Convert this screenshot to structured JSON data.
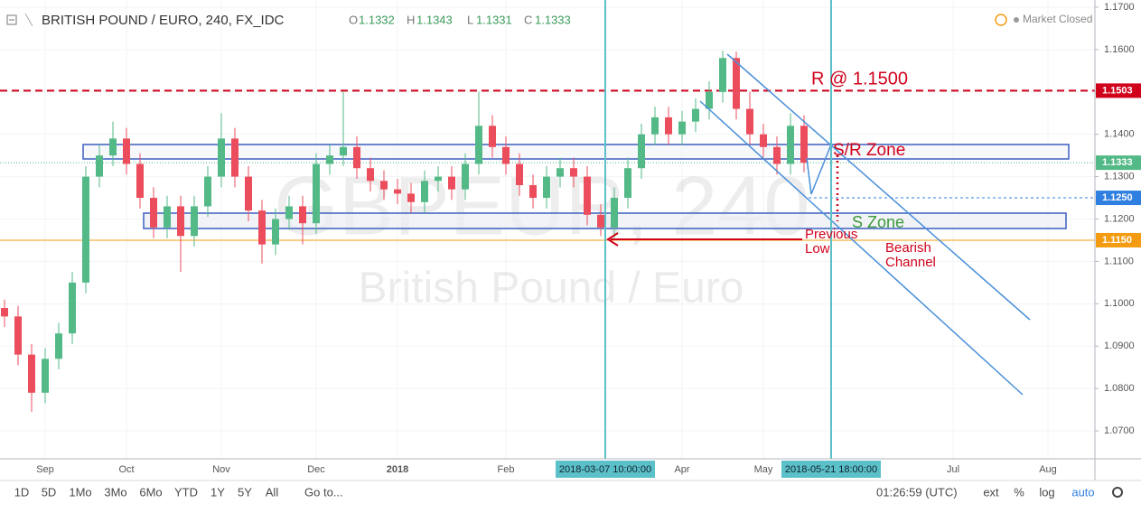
{
  "header": {
    "title": "BRITISH POUND / EURO, 240, FX_IDC",
    "o_label": "O",
    "o": "1.1332",
    "h_label": "H",
    "h": "1.1343",
    "l_label": "L",
    "l": "1.1331",
    "c_label": "C",
    "c": "1.1333",
    "status": "Market Closed"
  },
  "toolbar": {
    "ranges": [
      "1D",
      "5D",
      "1Mo",
      "3Mo",
      "6Mo",
      "YTD",
      "1Y",
      "5Y",
      "All"
    ],
    "goto": "Go to...",
    "clock": "01:26:59 (UTC)",
    "options": [
      "ext",
      "%",
      "log",
      "auto"
    ]
  },
  "chart_data": {
    "type": "candlestick",
    "watermark": "GBPEUR, 240",
    "watermark_sub": "British Pound / Euro",
    "up_color": "#53b987",
    "down_color": "#eb4d5c",
    "categories": [
      null,
      null,
      null,
      "Sep",
      null,
      null,
      null,
      null,
      null,
      "Oct",
      null,
      null,
      null,
      null,
      null,
      null,
      "Nov",
      null,
      null,
      null,
      null,
      null,
      null,
      "Dec",
      null,
      null,
      null,
      null,
      null,
      "2018",
      null,
      null,
      null,
      null,
      null,
      null,
      null,
      "Feb",
      null,
      null,
      null,
      null,
      null,
      null,
      null,
      null,
      null,
      null,
      null,
      null,
      "Apr",
      null,
      null,
      null,
      null,
      null,
      "May",
      null,
      null,
      null,
      null,
      null,
      null,
      null,
      null,
      null,
      null,
      null,
      null,
      null,
      "Jul",
      null,
      null,
      null,
      null,
      null,
      null,
      "Aug"
    ],
    "open": [
      1.099,
      1.097,
      1.088,
      1.079,
      1.087,
      1.093,
      1.105,
      1.13,
      1.135,
      1.139,
      1.133,
      1.125,
      1.118,
      1.123,
      1.116,
      1.123,
      1.13,
      1.139,
      1.13,
      1.122,
      1.114,
      1.12,
      1.123,
      1.119,
      1.133,
      1.135,
      1.137,
      1.132,
      1.129,
      1.127,
      1.126,
      1.124,
      1.129,
      1.13,
      1.127,
      1.133,
      1.142,
      1.137,
      1.133,
      1.128,
      1.125,
      1.13,
      1.132,
      1.13,
      1.121,
      1.118,
      1.125,
      1.132,
      1.14,
      1.144,
      1.14,
      1.143,
      1.146,
      1.15,
      1.158,
      1.146,
      1.14,
      1.137,
      1.133,
      1.142,
      null,
      null,
      null,
      null,
      null,
      null,
      null,
      null,
      null,
      null,
      null,
      null,
      null,
      null,
      null,
      null,
      null,
      null
    ],
    "high": [
      1.101,
      1.0995,
      1.0905,
      1.0895,
      1.0955,
      1.1075,
      1.1325,
      1.1375,
      1.143,
      1.1415,
      1.1355,
      1.1275,
      1.1255,
      1.1255,
      1.1255,
      1.1325,
      1.145,
      1.1415,
      1.1325,
      1.1245,
      1.1225,
      1.1255,
      1.1255,
      1.1355,
      1.1375,
      1.15,
      1.1395,
      1.1345,
      1.1315,
      1.1295,
      1.1285,
      1.1315,
      1.1325,
      1.1325,
      1.1355,
      1.15,
      1.1445,
      1.1395,
      1.1355,
      1.1305,
      1.1325,
      1.1345,
      1.1345,
      1.1325,
      1.1235,
      1.1275,
      1.1345,
      1.1425,
      1.1465,
      1.1465,
      1.1455,
      1.1485,
      1.1525,
      1.1597,
      1.1595,
      1.15,
      1.1425,
      1.1395,
      1.145,
      1.1445,
      null,
      null,
      null,
      null,
      null,
      null,
      null,
      null,
      null,
      null,
      null,
      null,
      null,
      null,
      null,
      null,
      null,
      null
    ],
    "low": [
      1.0945,
      1.0855,
      1.0745,
      1.0765,
      1.0845,
      1.0905,
      1.1025,
      1.1275,
      1.1325,
      1.1305,
      1.1225,
      1.1155,
      1.1155,
      1.1075,
      1.1135,
      1.1205,
      1.1275,
      1.1275,
      1.1195,
      1.1095,
      1.1115,
      1.1175,
      1.114,
      1.1165,
      1.1305,
      1.1325,
      1.1295,
      1.1265,
      1.1245,
      1.1235,
      1.1215,
      1.1215,
      1.1265,
      1.1245,
      1.1245,
      1.1305,
      1.1345,
      1.1305,
      1.1255,
      1.1225,
      1.1225,
      1.1275,
      1.1275,
      1.1185,
      1.116,
      1.1155,
      1.1225,
      1.1295,
      1.1375,
      1.1375,
      1.1375,
      1.1405,
      1.1435,
      1.1475,
      1.1435,
      1.1375,
      1.1345,
      1.1305,
      1.1305,
      1.131,
      null,
      null,
      null,
      null,
      null,
      null,
      null,
      null,
      null,
      null,
      null,
      null,
      null,
      null,
      null,
      null,
      null,
      null
    ],
    "close": [
      1.097,
      1.088,
      1.079,
      1.087,
      1.093,
      1.105,
      1.13,
      1.135,
      1.139,
      1.133,
      1.125,
      1.118,
      1.123,
      1.116,
      1.123,
      1.13,
      1.139,
      1.13,
      1.122,
      1.114,
      1.12,
      1.123,
      1.119,
      1.133,
      1.135,
      1.137,
      1.132,
      1.129,
      1.127,
      1.126,
      1.124,
      1.129,
      1.13,
      1.127,
      1.133,
      1.142,
      1.137,
      1.133,
      1.128,
      1.125,
      1.13,
      1.132,
      1.13,
      1.121,
      1.118,
      1.125,
      1.132,
      1.14,
      1.144,
      1.14,
      1.143,
      1.146,
      1.15,
      1.158,
      1.146,
      1.14,
      1.137,
      1.133,
      1.142,
      1.1333,
      null,
      null,
      null,
      null,
      null,
      null,
      null,
      null,
      null,
      null,
      null,
      null,
      null,
      null,
      null,
      null,
      null,
      null
    ],
    "ylim": [
      1.0634,
      1.1717
    ],
    "yticks": [
      {
        "value": 1.07,
        "label": "1.0700"
      },
      {
        "value": 1.08,
        "label": "1.0800"
      },
      {
        "value": 1.09,
        "label": "1.0900"
      },
      {
        "value": 1.1,
        "label": "1.1000"
      },
      {
        "value": 1.11,
        "label": "1.1100"
      },
      {
        "value": 1.12,
        "label": "1.1200"
      },
      {
        "value": 1.13,
        "label": "1.1300"
      },
      {
        "value": 1.14,
        "label": "1.1400"
      },
      {
        "value": 1.15,
        "label": "1.1500"
      },
      {
        "value": 1.16,
        "label": "1.1600"
      },
      {
        "value": 1.17,
        "label": "1.1700"
      }
    ],
    "levels": [
      {
        "value": 1.1503,
        "label": "1.1503",
        "color": "#d0021b"
      },
      {
        "value": 1.1333,
        "label": "1.1333",
        "color": "#53b987"
      },
      {
        "value": 1.125,
        "label": "1.1250",
        "color": "#2f7fe0"
      },
      {
        "value": 1.115,
        "label": "1.1150",
        "color": "#f39c12"
      }
    ],
    "crosshairs": [
      "2018-03-07 10:00:00",
      "2018-05-21 18:00:00"
    ],
    "annotations": {
      "resistance": "R @ 1.1500",
      "sr_zone": "S/R Zone",
      "s_zone": "S Zone",
      "previous": "Previous",
      "low": "Low",
      "bearish": "Bearish",
      "channel": "Channel"
    }
  }
}
